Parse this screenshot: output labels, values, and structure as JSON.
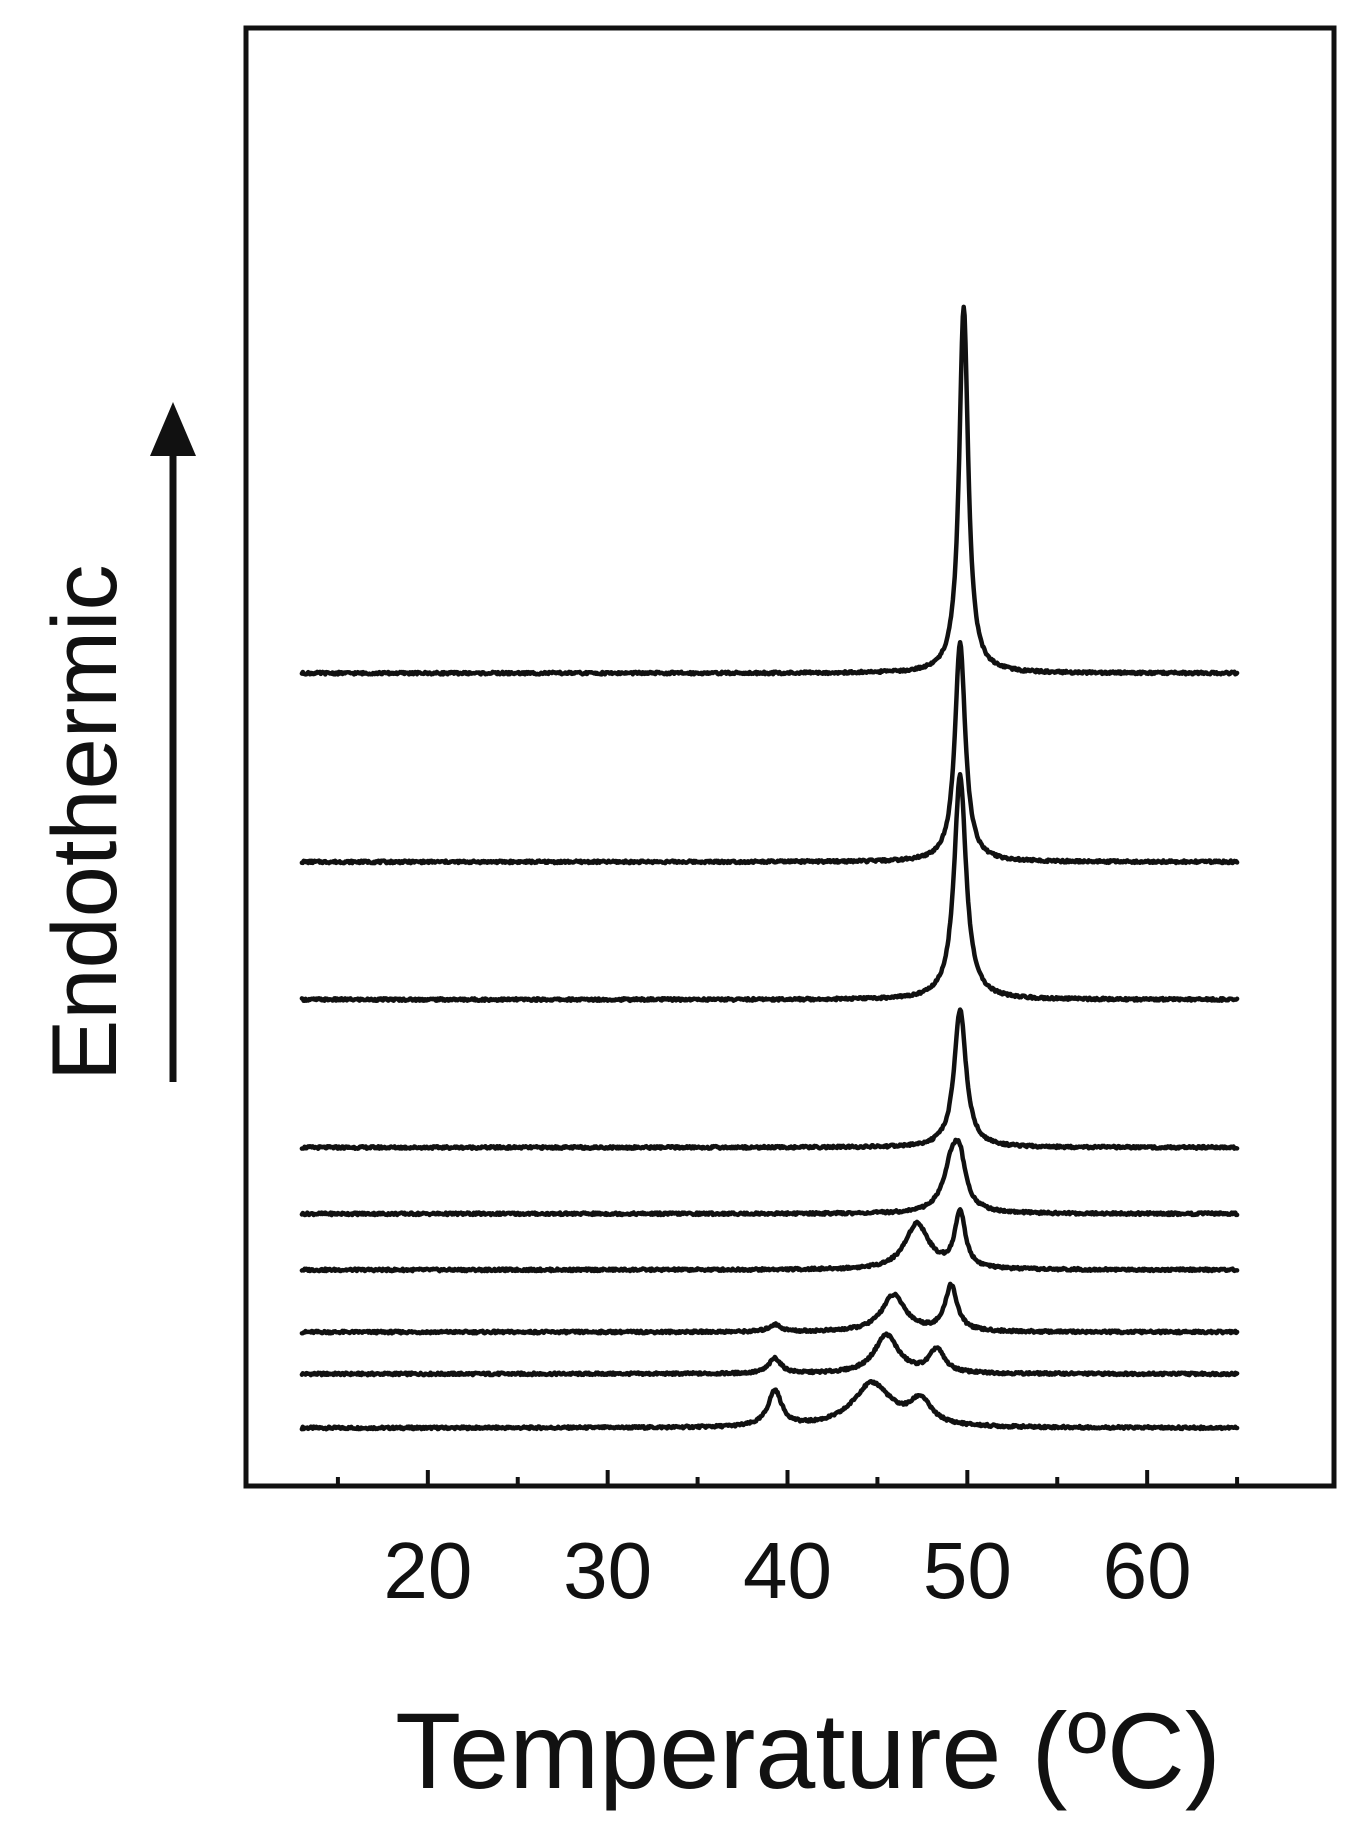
{
  "chart_data": {
    "type": "line",
    "title": "",
    "xlabel": "Temperature (ºC)",
    "ylabel": "Endothermic",
    "xlim": [
      10,
      70
    ],
    "xticks": [
      20,
      30,
      40,
      50,
      60
    ],
    "minor_xticks": [
      15,
      25,
      35,
      45,
      55,
      65
    ],
    "y_ticks_shown": false,
    "grid": false,
    "legend": "none",
    "stacked_offset": true,
    "x_range": [
      13,
      65
    ],
    "series": [
      {
        "baseline": 0.0,
        "peaks": [
          {
            "x": 39.3,
            "h": 0.35,
            "w": 0.45
          },
          {
            "x": 44.7,
            "h": 0.43,
            "w": 1.3
          },
          {
            "x": 47.4,
            "h": 0.24,
            "w": 0.7
          }
        ]
      },
      {
        "baseline": 0.53,
        "peaks": [
          {
            "x": 39.3,
            "h": 0.15,
            "w": 0.4
          },
          {
            "x": 45.5,
            "h": 0.38,
            "w": 0.8
          },
          {
            "x": 48.3,
            "h": 0.23,
            "w": 0.5
          }
        ]
      },
      {
        "baseline": 0.94,
        "peaks": [
          {
            "x": 39.3,
            "h": 0.07,
            "w": 0.4
          },
          {
            "x": 45.9,
            "h": 0.36,
            "w": 0.8
          },
          {
            "x": 49.1,
            "h": 0.45,
            "w": 0.4
          }
        ]
      },
      {
        "baseline": 1.55,
        "peaks": [
          {
            "x": 47.2,
            "h": 0.45,
            "w": 0.8
          },
          {
            "x": 49.6,
            "h": 0.55,
            "w": 0.35
          }
        ]
      },
      {
        "baseline": 2.1,
        "peaks": [
          {
            "x": 49.2,
            "h": 0.55,
            "w": 0.6
          },
          {
            "x": 49.6,
            "h": 0.3,
            "w": 0.35
          }
        ]
      },
      {
        "baseline": 2.75,
        "peaks": [
          {
            "x": 49.6,
            "h": 1.35,
            "w": 0.4
          }
        ]
      },
      {
        "baseline": 4.2,
        "peaks": [
          {
            "x": 49.6,
            "h": 2.2,
            "w": 0.4
          }
        ]
      },
      {
        "baseline": 5.55,
        "peaks": [
          {
            "x": 49.6,
            "h": 2.15,
            "w": 0.35
          }
        ]
      },
      {
        "baseline": 7.4,
        "peaks": [
          {
            "x": 49.8,
            "h": 3.6,
            "w": 0.3
          }
        ]
      }
    ]
  }
}
